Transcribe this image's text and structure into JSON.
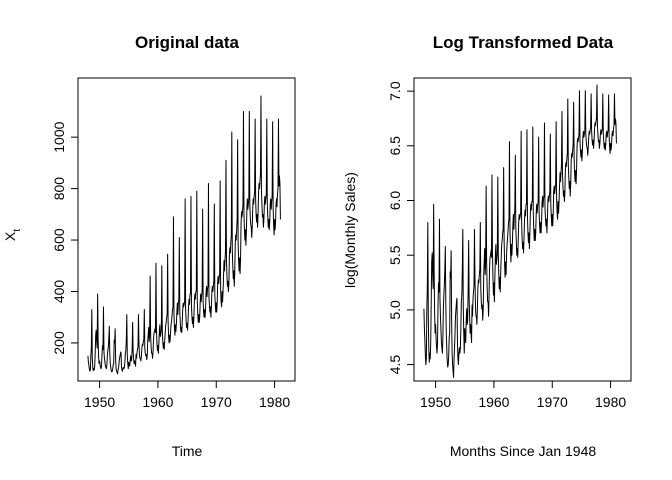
{
  "chart_data": [
    {
      "type": "line",
      "title": "Original data",
      "xlabel": "Time",
      "ylabel_main": "X",
      "ylabel_sub": "t",
      "xlim": [
        1946.3,
        1983.5
      ],
      "ylim": [
        52,
        1230
      ],
      "x_ticks": [
        {
          "value": 1950,
          "label": "1950"
        },
        {
          "value": 1960,
          "label": "1960"
        },
        {
          "value": 1970,
          "label": "1970"
        },
        {
          "value": 1980,
          "label": "1980"
        }
      ],
      "y_ticks": [
        {
          "value": 200,
          "label": "200"
        },
        {
          "value": 400,
          "label": "400"
        },
        {
          "value": 600,
          "label": "600"
        },
        {
          "value": 800,
          "label": "800"
        },
        {
          "value": 1000,
          "label": "1000"
        }
      ],
      "series": [
        {
          "x_start": 1948,
          "x_step_months": 1,
          "values": [
            150,
            125,
            112,
            98,
            90,
            95,
            150,
            180,
            330,
            140,
            105,
            92,
            100,
            95,
            110,
            160,
            230,
            250,
            205,
            180,
            390,
            215,
            145,
            120,
            130,
            115,
            105,
            100,
            110,
            155,
            190,
            175,
            340,
            165,
            140,
            125,
            110,
            105,
            100,
            115,
            150,
            170,
            185,
            215,
            265,
            160,
            120,
            105,
            92,
            88,
            90,
            98,
            115,
            120,
            210,
            200,
            255,
            135,
            100,
            90,
            85,
            80,
            95,
            105,
            120,
            140,
            150,
            160,
            165,
            110,
            95,
            90,
            100,
            105,
            100,
            105,
            125,
            160,
            170,
            215,
            310,
            150,
            120,
            100,
            125,
            115,
            110,
            135,
            150,
            130,
            135,
            180,
            280,
            165,
            140,
            120,
            130,
            120,
            110,
            155,
            140,
            165,
            175,
            185,
            310,
            200,
            155,
            140,
            140,
            130,
            150,
            180,
            195,
            190,
            205,
            215,
            330,
            180,
            160,
            150,
            155,
            135,
            150,
            205,
            230,
            260,
            205,
            235,
            460,
            230,
            185,
            160,
            160,
            140,
            170,
            215,
            240,
            245,
            255,
            240,
            510,
            250,
            200,
            170,
            190,
            160,
            200,
            245,
            270,
            225,
            235,
            250,
            500,
            250,
            205,
            180,
            200,
            175,
            210,
            240,
            270,
            280,
            300,
            310,
            545,
            280,
            225,
            200,
            230,
            205,
            245,
            270,
            285,
            305,
            330,
            340,
            690,
            310,
            260,
            230,
            270,
            245,
            275,
            320,
            355,
            310,
            350,
            370,
            610,
            320,
            280,
            245,
            260,
            240,
            280,
            330,
            355,
            340,
            350,
            360,
            760,
            330,
            285,
            260,
            275,
            250,
            290,
            340,
            370,
            350,
            390,
            390,
            770,
            350,
            300,
            275,
            300,
            260,
            300,
            365,
            390,
            370,
            400,
            400,
            790,
            360,
            310,
            280,
            310,
            280,
            300,
            360,
            390,
            360,
            385,
            400,
            720,
            360,
            320,
            300,
            330,
            300,
            330,
            395,
            420,
            380,
            410,
            420,
            820,
            380,
            345,
            320,
            340,
            300,
            340,
            400,
            420,
            400,
            420,
            440,
            740,
            390,
            350,
            320,
            355,
            320,
            360,
            440,
            460,
            430,
            450,
            470,
            830,
            410,
            360,
            340,
            400,
            360,
            400,
            460,
            520,
            480,
            520,
            560,
            910,
            520,
            460,
            420,
            440,
            400,
            430,
            540,
            570,
            550,
            590,
            620,
            1020,
            560,
            500,
            450,
            480,
            420,
            470,
            580,
            620,
            600,
            640,
            680,
            990,
            590,
            520,
            480,
            530,
            470,
            530,
            660,
            710,
            690,
            710,
            740,
            1100,
            700,
            640,
            600,
            640,
            580,
            630,
            720,
            760,
            720,
            740,
            760,
            1100,
            740,
            690,
            660,
            650,
            610,
            650,
            720,
            760,
            740,
            770,
            790,
            1070,
            760,
            700,
            670,
            700,
            650,
            700,
            780,
            820,
            800,
            830,
            860,
            1160,
            790,
            740,
            690,
            700,
            650,
            680,
            740,
            770,
            740,
            760,
            780,
            1070,
            740,
            690,
            650,
            680,
            640,
            670,
            740,
            760,
            720,
            750,
            770,
            1060,
            730,
            660,
            620,
            680,
            640,
            670,
            740,
            760,
            730,
            780,
            800,
            1070,
            810,
            850,
            820,
            680
          ]
        }
      ]
    },
    {
      "type": "line",
      "title": "Log Transformed Data",
      "xlabel": "Months Since Jan 1948",
      "ylabel": "log(Monthly Sales)",
      "xlim": [
        1946.3,
        1983.5
      ],
      "ylim": [
        4.35,
        7.12
      ],
      "transform": "log",
      "x_ticks": [
        {
          "value": 1950,
          "label": "1950"
        },
        {
          "value": 1960,
          "label": "1960"
        },
        {
          "value": 1970,
          "label": "1970"
        },
        {
          "value": 1980,
          "label": "1980"
        }
      ],
      "y_ticks": [
        {
          "value": 4.5,
          "label": "4.5"
        },
        {
          "value": 5.0,
          "label": "5.0"
        },
        {
          "value": 5.5,
          "label": "5.5"
        },
        {
          "value": 6.0,
          "label": "6.0"
        },
        {
          "value": 6.5,
          "label": "6.5"
        },
        {
          "value": 7.0,
          "label": "7.0"
        }
      ]
    }
  ]
}
